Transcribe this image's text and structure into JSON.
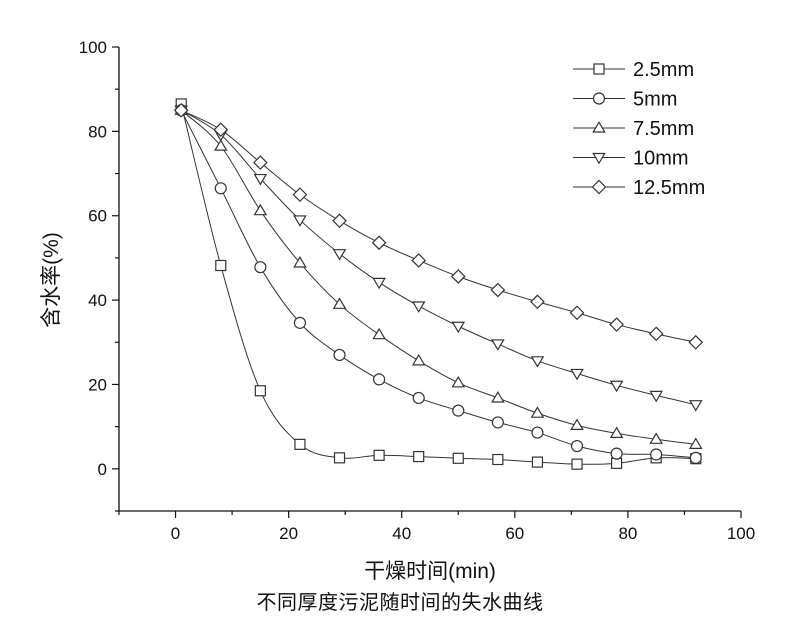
{
  "chart_data": {
    "type": "line",
    "title": "",
    "xlabel": "干燥时间(min)",
    "ylabel": "含水率(%)",
    "xlim": [
      -10,
      100
    ],
    "ylim": [
      -10,
      100
    ],
    "xticks": [
      0,
      20,
      40,
      60,
      80,
      100
    ],
    "yticks": [
      0,
      20,
      40,
      60,
      80,
      100
    ],
    "grid": false,
    "legend_position": "top-right",
    "line_color": "#333333",
    "x": [
      1,
      8,
      15,
      22,
      29,
      36,
      43,
      50,
      57,
      64,
      71,
      78,
      85,
      92
    ],
    "series": [
      {
        "name": "2.5mm",
        "marker": "square",
        "values": [
          86.5,
          48.2,
          18.5,
          5.8,
          2.6,
          3.2,
          2.9,
          2.5,
          2.2,
          1.6,
          1.1,
          1.3,
          2.6,
          2.4
        ]
      },
      {
        "name": "5mm",
        "marker": "circle",
        "values": [
          85.0,
          66.5,
          47.8,
          34.6,
          27.0,
          21.2,
          16.8,
          13.8,
          11.0,
          8.6,
          5.4,
          3.6,
          3.4,
          2.6
        ]
      },
      {
        "name": "7.5mm",
        "marker": "triangle-up",
        "values": [
          85.0,
          76.5,
          61.2,
          48.8,
          39.0,
          31.8,
          25.6,
          20.4,
          16.8,
          13.2,
          10.3,
          8.4,
          7.0,
          5.8
        ]
      },
      {
        "name": "10mm",
        "marker": "triangle-down",
        "values": [
          85.0,
          79.2,
          68.8,
          59.0,
          51.0,
          44.2,
          38.6,
          33.8,
          29.6,
          25.6,
          22.6,
          19.8,
          17.4,
          15.2
        ]
      },
      {
        "name": "12.5mm",
        "marker": "diamond",
        "values": [
          85.0,
          80.4,
          72.6,
          65.0,
          58.8,
          53.6,
          49.4,
          45.6,
          42.4,
          39.6,
          37.0,
          34.2,
          32.0,
          30.0
        ]
      }
    ]
  },
  "caption": "不同厚度污泥随时间的失水曲线"
}
